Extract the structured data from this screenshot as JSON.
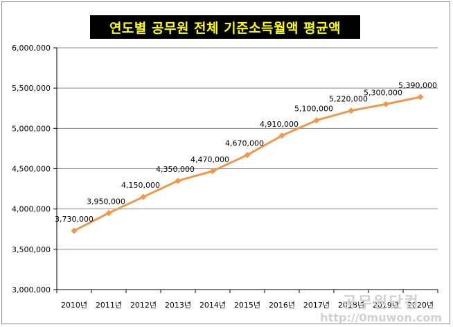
{
  "chart_data": {
    "type": "line",
    "title": "연도별 공무원 전체 기준소득월액 평균액",
    "categories": [
      "2010년",
      "2011년",
      "2012년",
      "2013년",
      "2014년",
      "2015년",
      "2016년",
      "2017년",
      "2018년",
      "2019년",
      "2020년"
    ],
    "series": [
      {
        "values": [
          3730000,
          3950000,
          4150000,
          4350000,
          4470000,
          4670000,
          4910000,
          5100000,
          5220000,
          5300000,
          5390000
        ]
      }
    ],
    "data_labels": [
      "3,730,000",
      "3,950,000",
      "4,150,000",
      "4,350,000",
      "4,470,000",
      "4,670,000",
      "4,910,000",
      "5,100,000",
      "5,220,000",
      "5,300,000",
      "5,390,000"
    ],
    "y_ticks": [
      "3,000,000",
      "3,500,000",
      "4,000,000",
      "4,500,000",
      "5,000,000",
      "5,500,000",
      "6,000,000"
    ],
    "ylim": [
      3000000,
      6000000
    ],
    "grid": true,
    "legend": "none",
    "colors": {
      "line": "#f0974a",
      "grid": "#888888",
      "title_bg": "#000000",
      "title_fg": "#ffff00"
    }
  },
  "watermark": {
    "name": "공무원닷컴",
    "url": "http://0muwon.com"
  }
}
